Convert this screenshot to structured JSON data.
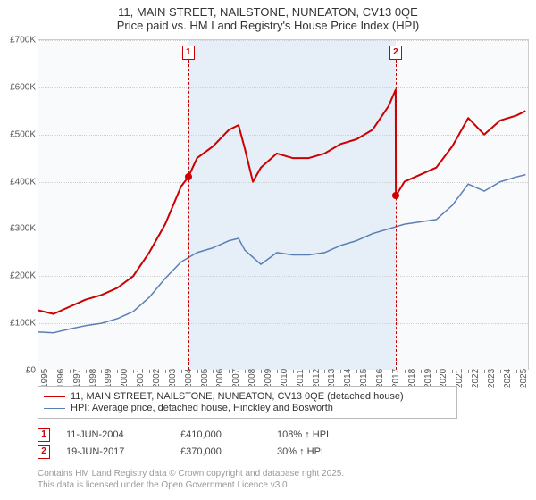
{
  "title_line1": "11, MAIN STREET, NAILSTONE, NUNEATON, CV13 0QE",
  "title_line2": "Price paid vs. HM Land Registry's House Price Index (HPI)",
  "chart": {
    "type": "line",
    "background_color": "#f9fafb",
    "shade_color": "#e6eef7",
    "grid_color": "#d0d0d0",
    "x_years": [
      1995,
      1996,
      1997,
      1998,
      1999,
      2000,
      2001,
      2002,
      2003,
      2004,
      2005,
      2006,
      2007,
      2008,
      2009,
      2010,
      2011,
      2012,
      2013,
      2014,
      2015,
      2016,
      2017,
      2018,
      2019,
      2020,
      2021,
      2022,
      2023,
      2024,
      2025
    ],
    "xlim": [
      1995,
      2025.8
    ],
    "ylim": [
      0,
      700000
    ],
    "ytick_step": 100000,
    "ylabels": [
      "£0",
      "£100K",
      "£200K",
      "£300K",
      "£400K",
      "£500K",
      "£600K",
      "£700K"
    ],
    "series": [
      {
        "name": "11, MAIN STREET, NAILSTONE, NUNEATON, CV13 0QE (detached house)",
        "color": "#cc0000",
        "line_width": 2,
        "x": [
          1995,
          1996,
          1997,
          1998,
          1999,
          2000,
          2001,
          2002,
          2003,
          2004,
          2004.45,
          2005,
          2006,
          2007,
          2007.6,
          2008,
          2008.5,
          2009,
          2010,
          2011,
          2012,
          2013,
          2014,
          2015,
          2016,
          2017,
          2017.45,
          2017.46,
          2018,
          2019,
          2020,
          2021,
          2022,
          2023,
          2024,
          2025,
          2025.6
        ],
        "y": [
          128000,
          120000,
          135000,
          150000,
          160000,
          175000,
          200000,
          250000,
          310000,
          390000,
          410000,
          450000,
          475000,
          510000,
          520000,
          470000,
          400000,
          430000,
          460000,
          450000,
          450000,
          460000,
          480000,
          490000,
          510000,
          560000,
          595000,
          370000,
          400000,
          415000,
          430000,
          475000,
          535000,
          500000,
          530000,
          540000,
          550000
        ]
      },
      {
        "name": "HPI: Average price, detached house, Hinckley and Bosworth",
        "color": "#5b7fb4",
        "line_width": 1.5,
        "x": [
          1995,
          1996,
          1997,
          1998,
          1999,
          2000,
          2001,
          2002,
          2003,
          2004,
          2005,
          2006,
          2007,
          2007.6,
          2008,
          2009,
          2010,
          2011,
          2012,
          2013,
          2014,
          2015,
          2016,
          2017,
          2018,
          2019,
          2020,
          2021,
          2022,
          2023,
          2024,
          2025,
          2025.6
        ],
        "y": [
          82000,
          80000,
          88000,
          95000,
          100000,
          110000,
          125000,
          155000,
          195000,
          230000,
          250000,
          260000,
          275000,
          280000,
          255000,
          225000,
          250000,
          245000,
          245000,
          250000,
          265000,
          275000,
          290000,
          300000,
          310000,
          315000,
          320000,
          350000,
          395000,
          380000,
          400000,
          410000,
          415000
        ]
      }
    ],
    "shade_x": [
      2004.45,
      2017.45
    ],
    "sale_markers": [
      {
        "num": "1",
        "x": 2004.45,
        "y": 410000
      },
      {
        "num": "2",
        "x": 2017.45,
        "y": 370000
      }
    ]
  },
  "legend": {
    "items": [
      {
        "color": "#cc0000",
        "width": 2,
        "label": "11, MAIN STREET, NAILSTONE, NUNEATON, CV13 0QE (detached house)"
      },
      {
        "color": "#5b7fb4",
        "width": 1.5,
        "label": "HPI: Average price, detached house, Hinckley and Bosworth"
      }
    ]
  },
  "sales": [
    {
      "num": "1",
      "date": "11-JUN-2004",
      "price": "£410,000",
      "hpi": "108% ↑ HPI"
    },
    {
      "num": "2",
      "date": "19-JUN-2017",
      "price": "£370,000",
      "hpi": "30% ↑ HPI"
    }
  ],
  "footer_line1": "Contains HM Land Registry data © Crown copyright and database right 2025.",
  "footer_line2": "This data is licensed under the Open Government Licence v3.0."
}
